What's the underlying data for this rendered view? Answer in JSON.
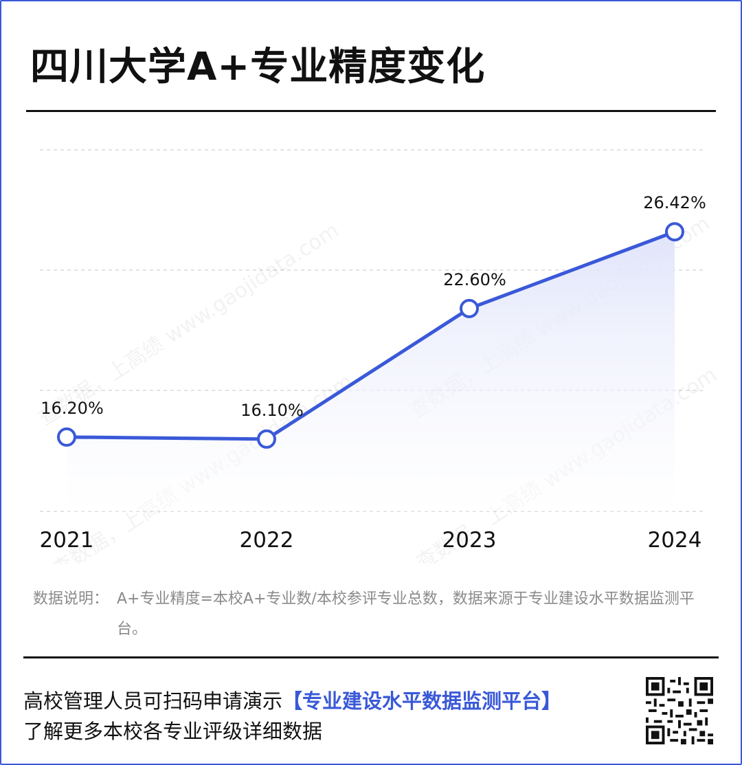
{
  "title": "四川大学A+专业精度变化",
  "chart_data": {
    "type": "area",
    "categories": [
      "2021",
      "2022",
      "2023",
      "2024"
    ],
    "series": [
      {
        "values": [
          16.2,
          16.1,
          22.6,
          26.42
        ]
      }
    ],
    "data_labels": [
      "16.20%",
      "16.10%",
      "22.60%",
      "26.42%"
    ],
    "ylim": [
      12.5,
      30.5
    ],
    "grid": true,
    "colors": {
      "line": "#3a59d8",
      "fill": "#e6e9fb",
      "grid": "#d9d9d9"
    },
    "watermark": "查数据，上高绩 www.gaojidata.com"
  },
  "note": {
    "label": "数据说明：",
    "body": "A+专业精度=本校A+专业数/本校参评专业总数，数据来源于专业建设水平数据监测平台。"
  },
  "footer": {
    "line1_prefix": "高校管理人员可扫码申请演示",
    "line1_highlight": "【专业建设水平数据监测平台】",
    "line2": "了解更多本校各专业评级详细数据",
    "qr_icon": "qr-code-icon"
  }
}
